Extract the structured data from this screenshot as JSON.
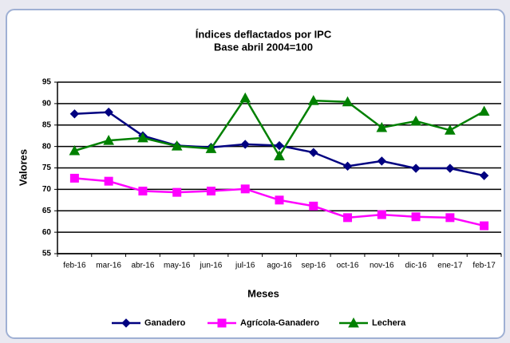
{
  "chart_data": {
    "type": "line",
    "title": "Índices deflactados por IPC",
    "subtitle": "Base abril 2004=100",
    "x_label": "Meses",
    "y_label": "Valores",
    "categories": [
      "feb-16",
      "mar-16",
      "abr-16",
      "may-16",
      "jun-16",
      "jul-16",
      "ago-16",
      "sep-16",
      "oct-16",
      "nov-16",
      "dic-16",
      "ene-17",
      "feb-17"
    ],
    "series": [
      {
        "name": "Ganadero",
        "color": "#000080",
        "marker": "diamond",
        "values": [
          87.6,
          88.0,
          82.5,
          80.2,
          79.8,
          80.5,
          80.2,
          78.6,
          75.4,
          76.6,
          74.9,
          74.9,
          73.2
        ]
      },
      {
        "name": "Agrícola-Ganadero",
        "color": "#ff00ff",
        "marker": "square",
        "values": [
          72.6,
          71.9,
          69.6,
          69.3,
          69.6,
          70.1,
          67.5,
          66.1,
          63.4,
          64.1,
          63.6,
          63.4,
          61.5
        ]
      },
      {
        "name": "Lechera",
        "color": "#008000",
        "marker": "triangle",
        "values": [
          79.0,
          81.4,
          82.0,
          80.1,
          79.5,
          91.3,
          77.8,
          90.7,
          90.4,
          84.4,
          85.9,
          83.8,
          88.2
        ]
      }
    ],
    "ylim": [
      55,
      95
    ],
    "yticks": [
      55,
      60,
      65,
      70,
      75,
      80,
      85,
      90,
      95
    ],
    "grid": true
  }
}
